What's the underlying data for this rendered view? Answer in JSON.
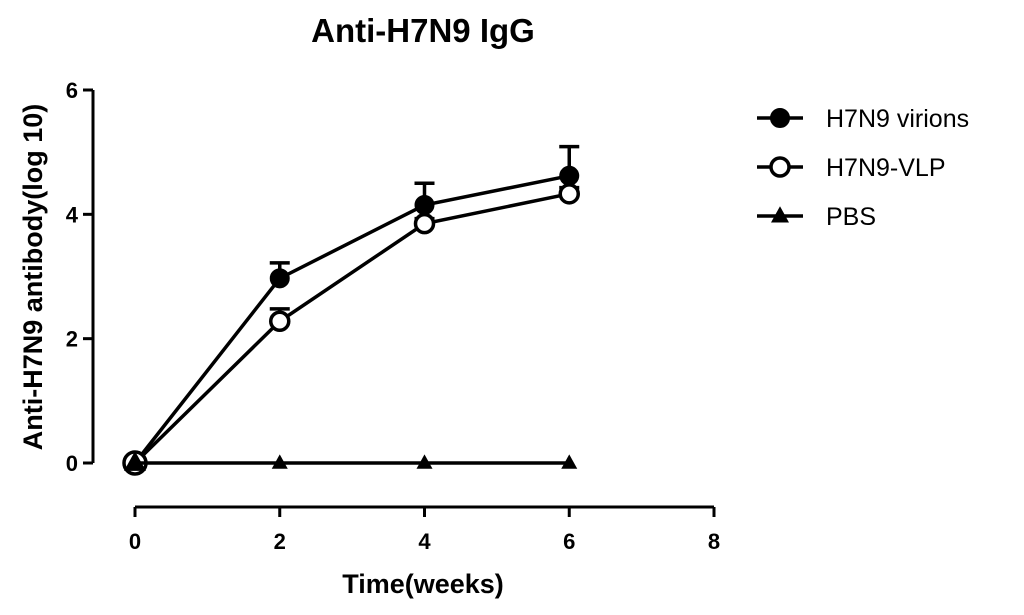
{
  "chart_data": {
    "type": "line",
    "title": "Anti-H7N9 IgG",
    "xlabel": "Time(weeks)",
    "ylabel": "Anti-H7N9 antibody(log 10)",
    "xlim": [
      0,
      8
    ],
    "ylim": [
      0,
      6
    ],
    "xticks": [
      0,
      2,
      4,
      6,
      8
    ],
    "yticks": [
      0,
      2,
      4,
      6
    ],
    "grid": false,
    "legend_position": "top-right",
    "series": [
      {
        "name": "H7N9 virions",
        "marker": "filled-circle",
        "color": "#000000",
        "x": [
          0,
          2,
          4,
          6
        ],
        "y": [
          0,
          2.97,
          4.15,
          4.62
        ],
        "error": [
          0,
          0.25,
          0.35,
          0.47
        ]
      },
      {
        "name": "H7N9-VLP",
        "marker": "open-circle",
        "color": "#000000",
        "x": [
          0,
          2,
          4,
          6
        ],
        "y": [
          0,
          2.28,
          3.85,
          4.33
        ],
        "error": [
          0,
          0.2,
          0.08,
          0.1
        ]
      },
      {
        "name": "PBS",
        "marker": "filled-triangle",
        "color": "#000000",
        "x": [
          0,
          2,
          4,
          6
        ],
        "y": [
          0,
          0,
          0,
          0
        ],
        "error": [
          0,
          0,
          0,
          0
        ]
      }
    ]
  }
}
